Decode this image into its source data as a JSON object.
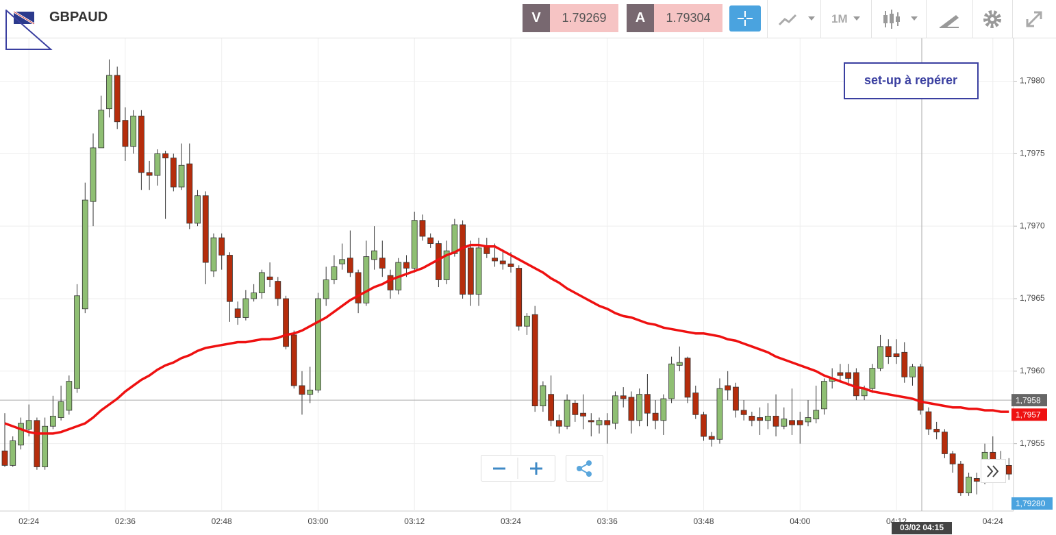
{
  "header": {
    "symbol": "GBPAUD",
    "sell_label": "V",
    "sell_price": "1.79269",
    "buy_label": "A",
    "buy_price": "1.79304",
    "timeframe": "1M"
  },
  "chart_data": {
    "type": "candlestick",
    "annotation": "set-up à repérer",
    "categories": [
      null,
      null,
      null,
      "02:24",
      null,
      null,
      null,
      null,
      null,
      null,
      null,
      null,
      null,
      null,
      null,
      "02:36",
      null,
      null,
      null,
      null,
      null,
      null,
      null,
      null,
      null,
      null,
      null,
      "02:48",
      null,
      null,
      null,
      null,
      null,
      null,
      null,
      null,
      null,
      null,
      null,
      "03:00",
      null,
      null,
      null,
      null,
      null,
      null,
      null,
      null,
      null,
      null,
      null,
      "03:12",
      null,
      null,
      null,
      null,
      null,
      null,
      null,
      null,
      null,
      null,
      null,
      "03:24",
      null,
      null,
      null,
      null,
      null,
      null,
      null,
      null,
      null,
      null,
      null,
      "03:36",
      null,
      null,
      null,
      null,
      null,
      null,
      null,
      null,
      null,
      null,
      null,
      "03:48",
      null,
      null,
      null,
      null,
      null,
      null,
      null,
      null,
      null,
      null,
      null,
      "04:00",
      null,
      null,
      null,
      null,
      null,
      null,
      null,
      null,
      null,
      null,
      null,
      "04:12",
      null,
      null,
      null,
      null,
      null,
      null,
      null,
      null,
      null,
      null,
      null,
      "04:24",
      null,
      null
    ],
    "open": [
      1.79545,
      1.79535,
      1.79549,
      1.7956,
      1.79566,
      1.79534,
      1.79562,
      1.79568,
      1.79573,
      1.79588,
      1.79643,
      1.79717,
      1.79754,
      1.79781,
      1.79804,
      1.79773,
      1.79755,
      1.79776,
      1.79737,
      1.79735,
      1.7975,
      1.79747,
      1.79727,
      1.79743,
      1.79702,
      1.79721,
      1.79669,
      1.79692,
      1.7968,
      1.79643,
      1.79637,
      1.7965,
      1.79654,
      1.79665,
      1.79662,
      1.7965,
      1.79625,
      1.7959,
      1.79584,
      1.79587,
      1.7965,
      1.79663,
      1.79674,
      1.79678,
      1.79668,
      1.79647,
      1.79677,
      1.79678,
      1.79666,
      1.79656,
      1.79675,
      1.79671,
      1.79704,
      1.79692,
      1.79688,
      1.79663,
      1.79681,
      1.79701,
      1.79685,
      1.79653,
      1.79686,
      1.79678,
      1.79676,
      1.79674,
      1.79671,
      1.79631,
      1.79639,
      1.79576,
      1.79584,
      1.79566,
      1.79562,
      1.79578,
      1.79571,
      1.79566,
      1.79563,
      1.79566,
      1.79564,
      1.79583,
      1.79582,
      1.79566,
      1.79584,
      1.79571,
      1.79566,
      1.79581,
      1.79604,
      1.79609,
      1.79585,
      1.7957,
      1.79555,
      1.79553,
      1.7959,
      1.79589,
      1.79573,
      1.79569,
      1.79568,
      1.79566,
      1.79569,
      1.79562,
      1.79566,
      1.79566,
      1.79565,
      1.79567,
      1.79574,
      1.79593,
      1.79599,
      1.79599,
      1.79599,
      1.79583,
      1.79588,
      1.79602,
      1.79617,
      1.79612,
      1.79613,
      1.79596,
      1.79603,
      1.79572,
      1.7956,
      1.79558,
      1.79543,
      1.79536,
      1.79516,
      1.79526,
      1.79525,
      1.79544,
      1.79538,
      1.79535
    ],
    "high": [
      1.79571,
      1.79555,
      1.79568,
      1.79577,
      1.79568,
      1.79568,
      1.79583,
      1.7959,
      1.79597,
      1.7966,
      1.7973,
      1.79764,
      1.7979,
      1.79815,
      1.7981,
      1.79782,
      1.7978,
      1.7978,
      1.79745,
      1.79753,
      1.79752,
      1.7975,
      1.79757,
      1.79757,
      1.79725,
      1.79724,
      1.79695,
      1.79695,
      1.79682,
      1.79648,
      1.79656,
      1.7966,
      1.7967,
      1.79675,
      1.79665,
      1.79652,
      1.79628,
      1.796,
      1.79603,
      1.79654,
      1.79672,
      1.7968,
      1.79688,
      1.79697,
      1.7967,
      1.7969,
      1.797,
      1.7969,
      1.7967,
      1.79678,
      1.7968,
      1.7971,
      1.79708,
      1.79695,
      1.7969,
      1.7969,
      1.79705,
      1.79704,
      1.7969,
      1.79692,
      1.79692,
      1.79688,
      1.79684,
      1.79682,
      1.79673,
      1.7964,
      1.79645,
      1.79593,
      1.79597,
      1.7957,
      1.79584,
      1.7958,
      1.79584,
      1.79571,
      1.79568,
      1.79571,
      1.79586,
      1.79589,
      1.79586,
      1.79588,
      1.79598,
      1.7958,
      1.79584,
      1.7961,
      1.79617,
      1.7961,
      1.7959,
      1.79572,
      1.79558,
      1.79595,
      1.796,
      1.79592,
      1.7958,
      1.79572,
      1.79575,
      1.79578,
      1.79584,
      1.79575,
      1.79588,
      1.79572,
      1.7958,
      1.7959,
      1.79595,
      1.79602,
      1.79605,
      1.79605,
      1.79602,
      1.7959,
      1.79605,
      1.79625,
      1.79622,
      1.79622,
      1.7962,
      1.79605,
      1.79605,
      1.79575,
      1.79565,
      1.7956,
      1.79545,
      1.79538,
      1.7953,
      1.7953,
      1.7955,
      1.79555,
      1.79545,
      1.7954
    ],
    "low": [
      1.79534,
      1.79534,
      1.79546,
      1.79555,
      1.79532,
      1.79532,
      1.7956,
      1.79566,
      1.7957,
      1.79585,
      1.7964,
      1.797,
      1.79754,
      1.79775,
      1.79767,
      1.79745,
      1.7975,
      1.79725,
      1.79725,
      1.79728,
      1.79705,
      1.79724,
      1.79725,
      1.79698,
      1.797,
      1.7966,
      1.79665,
      1.7967,
      1.79634,
      1.79632,
      1.79635,
      1.79648,
      1.7965,
      1.79658,
      1.79645,
      1.79615,
      1.79588,
      1.7957,
      1.79578,
      1.79585,
      1.79645,
      1.7966,
      1.7967,
      1.79665,
      1.7964,
      1.79645,
      1.7967,
      1.79665,
      1.7965,
      1.79653,
      1.79665,
      1.79668,
      1.7969,
      1.79685,
      1.79658,
      1.7966,
      1.79679,
      1.7965,
      1.79645,
      1.79645,
      1.79678,
      1.79672,
      1.7967,
      1.79668,
      1.79628,
      1.79625,
      1.79572,
      1.79572,
      1.79562,
      1.79557,
      1.7956,
      1.79565,
      1.7956,
      1.79555,
      1.79557,
      1.7955,
      1.7956,
      1.79575,
      1.79557,
      1.79562,
      1.79562,
      1.7956,
      1.79556,
      1.79578,
      1.796,
      1.79578,
      1.79567,
      1.79552,
      1.79548,
      1.7955,
      1.7958,
      1.79568,
      1.79566,
      1.79562,
      1.79556,
      1.7956,
      1.79555,
      1.7956,
      1.79556,
      1.7955,
      1.79562,
      1.79564,
      1.7957,
      1.79588,
      1.79592,
      1.7959,
      1.7958,
      1.7958,
      1.79585,
      1.796,
      1.79605,
      1.79605,
      1.79592,
      1.7959,
      1.7957,
      1.79556,
      1.79553,
      1.7954,
      1.7953,
      1.79514,
      1.79514,
      1.79515,
      1.79522,
      1.7953,
      1.7953,
      1.79525
    ],
    "close": [
      1.79535,
      1.79552,
      1.79564,
      1.79566,
      1.79534,
      1.79562,
      1.79569,
      1.79579,
      1.79593,
      1.79652,
      1.79718,
      1.79754,
      1.7978,
      1.79804,
      1.79772,
      1.79755,
      1.79776,
      1.79737,
      1.79735,
      1.7975,
      1.79747,
      1.79727,
      1.79742,
      1.79702,
      1.79721,
      1.79675,
      1.79692,
      1.7968,
      1.79648,
      1.79637,
      1.7965,
      1.79654,
      1.79668,
      1.79663,
      1.7965,
      1.79617,
      1.7959,
      1.79584,
      1.79587,
      1.7965,
      1.79663,
      1.79672,
      1.79677,
      1.79668,
      1.79647,
      1.79679,
      1.79683,
      1.79671,
      1.79656,
      1.79675,
      1.79671,
      1.79704,
      1.79693,
      1.79688,
      1.79663,
      1.79683,
      1.79701,
      1.79653,
      1.79653,
      1.79685,
      1.79681,
      1.79676,
      1.79674,
      1.79672,
      1.79631,
      1.79638,
      1.79576,
      1.7959,
      1.79566,
      1.79562,
      1.7958,
      1.7957,
      1.79569,
      1.79565,
      1.79566,
      1.79563,
      1.79583,
      1.79581,
      1.79566,
      1.79584,
      1.79571,
      1.79566,
      1.79581,
      1.79605,
      1.79606,
      1.79582,
      1.7957,
      1.79555,
      1.79553,
      1.79588,
      1.79587,
      1.79573,
      1.7957,
      1.79566,
      1.79566,
      1.79569,
      1.79562,
      1.79567,
      1.79563,
      1.79563,
      1.79568,
      1.79573,
      1.79593,
      1.79595,
      1.79597,
      1.79595,
      1.79583,
      1.79588,
      1.79602,
      1.79617,
      1.7961,
      1.7961,
      1.79596,
      1.79603,
      1.79573,
      1.7956,
      1.79558,
      1.79543,
      1.79536,
      1.79516,
      1.79527,
      1.79524,
      1.79544,
      1.79537,
      1.79535,
      1.79529
    ],
    "up_color": "#8fbf73",
    "down_color": "#b52d0c",
    "moving_average": {
      "color": "#ee1111",
      "values": [
        1.79564,
        1.79562,
        1.7956,
        1.79558,
        1.79557,
        1.79557,
        1.79557,
        1.79558,
        1.7956,
        1.79562,
        1.79564,
        1.79568,
        1.79573,
        1.79577,
        1.79581,
        1.79586,
        1.7959,
        1.79594,
        1.79597,
        1.79601,
        1.79604,
        1.79606,
        1.79609,
        1.79611,
        1.79614,
        1.79616,
        1.79617,
        1.79618,
        1.79619,
        1.7962,
        1.7962,
        1.79621,
        1.79622,
        1.79622,
        1.79623,
        1.79625,
        1.79626,
        1.79628,
        1.79631,
        1.79634,
        1.79637,
        1.79641,
        1.79645,
        1.79649,
        1.79652,
        1.79655,
        1.79658,
        1.7966,
        1.79663,
        1.79665,
        1.79667,
        1.79669,
        1.79671,
        1.79674,
        1.79677,
        1.7968,
        1.79682,
        1.79685,
        1.79687,
        1.79687,
        1.79686,
        1.79686,
        1.79683,
        1.7968,
        1.79677,
        1.79674,
        1.79671,
        1.79668,
        1.79664,
        1.79661,
        1.79657,
        1.79654,
        1.79651,
        1.79648,
        1.79645,
        1.79643,
        1.7964,
        1.79638,
        1.79637,
        1.79635,
        1.79633,
        1.79632,
        1.7963,
        1.79629,
        1.79628,
        1.79627,
        1.79626,
        1.79626,
        1.79625,
        1.79624,
        1.79622,
        1.79621,
        1.79619,
        1.79617,
        1.79615,
        1.79613,
        1.7961,
        1.79608,
        1.79606,
        1.79604,
        1.79602,
        1.796,
        1.79597,
        1.79595,
        1.79593,
        1.79591,
        1.79589,
        1.79588,
        1.79586,
        1.79585,
        1.79584,
        1.79583,
        1.79582,
        1.79581,
        1.79579,
        1.79578,
        1.79577,
        1.79576,
        1.79575,
        1.79575,
        1.79574,
        1.79574,
        1.79573,
        1.79573,
        1.79572,
        1.79572
      ],
      "last_label": {
        "value": 1.7957,
        "label": "1,7957"
      }
    },
    "price_line": {
      "value": 1.7958,
      "label": "1,7958"
    },
    "crosshair_time": "03/02 04:15",
    "quote_label": "1,79280",
    "ylim": [
      1.79504,
      1.7983
    ],
    "yticks": [
      {
        "value": 1.7955,
        "label": "1,7955"
      },
      {
        "value": 1.796,
        "label": "1,7960"
      },
      {
        "value": 1.7965,
        "label": "1,7965"
      },
      {
        "value": 1.797,
        "label": "1,7970"
      },
      {
        "value": 1.7975,
        "label": "1,7975"
      },
      {
        "value": 1.798,
        "label": "1,7980"
      }
    ],
    "grid": true
  }
}
